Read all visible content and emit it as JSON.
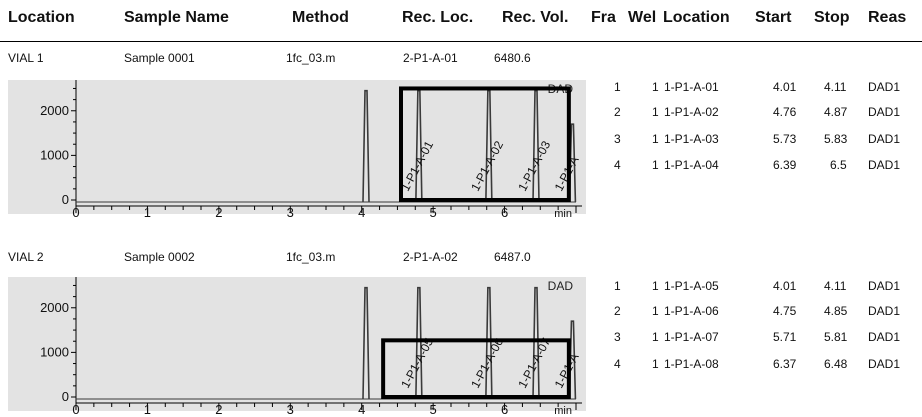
{
  "columns": [
    "Location",
    "Sample Name",
    "Method",
    "Rec. Loc.",
    "Rec. Vol.",
    "Fra",
    "Wel",
    "Location",
    "Start",
    "Stop",
    "Reas"
  ],
  "vials": [
    {
      "location": "VIAL 1",
      "sample": "Sample 0001",
      "method": "1fc_03.m",
      "rec_loc": "2-P1-A-01",
      "rec_vol": "6480.6",
      "fractions": [
        {
          "fra": "1",
          "wel": "1",
          "loc": "1-P1-A-01",
          "start": "4.01",
          "stop": "4.11",
          "reas": "DAD1"
        },
        {
          "fra": "2",
          "wel": "1",
          "loc": "1-P1-A-02",
          "start": "4.76",
          "stop": "4.87",
          "reas": "DAD1"
        },
        {
          "fra": "3",
          "wel": "1",
          "loc": "1-P1-A-03",
          "start": "5.73",
          "stop": "5.83",
          "reas": "DAD1"
        },
        {
          "fra": "4",
          "wel": "1",
          "loc": "1-P1-A-04",
          "start": "6.39",
          "stop": "6.5",
          "reas": "DAD1"
        }
      ]
    },
    {
      "location": "VIAL 2",
      "sample": "Sample 0002",
      "method": "1fc_03.m",
      "rec_loc": "2-P1-A-02",
      "rec_vol": "6487.0",
      "fractions": [
        {
          "fra": "1",
          "wel": "1",
          "loc": "1-P1-A-05",
          "start": "4.01",
          "stop": "4.11",
          "reas": "DAD1"
        },
        {
          "fra": "2",
          "wel": "1",
          "loc": "1-P1-A-06",
          "start": "4.75",
          "stop": "4.85",
          "reas": "DAD1"
        },
        {
          "fra": "3",
          "wel": "1",
          "loc": "1-P1-A-07",
          "start": "5.71",
          "stop": "5.81",
          "reas": "DAD1"
        },
        {
          "fra": "4",
          "wel": "1",
          "loc": "1-P1-A-08",
          "start": "6.37",
          "stop": "6.48",
          "reas": "DAD1"
        }
      ]
    }
  ],
  "colors": {
    "plot_bg": "#e3e3e3",
    "trace": "#3a3a3a",
    "box": "#000000"
  },
  "chart_data": [
    {
      "type": "line",
      "title": "",
      "detector_label": "DAD",
      "xlabel": "min",
      "ylabel": "",
      "xlim": [
        0,
        7
      ],
      "ylim": [
        0,
        2600
      ],
      "xticks": [
        0,
        1,
        2,
        3,
        4,
        5,
        6
      ],
      "yticks": [
        0,
        1000,
        2000
      ],
      "peaks": [
        {
          "x": 4.06,
          "height": 2450,
          "label": ""
        },
        {
          "x": 4.8,
          "height": 2450,
          "label": "1-P1-A-01"
        },
        {
          "x": 5.78,
          "height": 2450,
          "label": "1-P1-A-02"
        },
        {
          "x": 6.44,
          "height": 2450,
          "label": "1-P1-A-03"
        },
        {
          "x": 6.95,
          "height": 1700,
          "label": "1-P1-A"
        }
      ],
      "highlight_box": {
        "x_range": [
          4.55,
          6.9
        ],
        "y_range": [
          0,
          2500
        ]
      }
    },
    {
      "type": "line",
      "title": "",
      "detector_label": "DAD",
      "xlabel": "min",
      "ylabel": "",
      "xlim": [
        0,
        7
      ],
      "ylim": [
        0,
        2600
      ],
      "xticks": [
        0,
        1,
        2,
        3,
        4,
        5,
        6
      ],
      "yticks": [
        0,
        1000,
        2000
      ],
      "peaks": [
        {
          "x": 4.06,
          "height": 2450,
          "label": ""
        },
        {
          "x": 4.8,
          "height": 2450,
          "label": "1-P1-A-05"
        },
        {
          "x": 5.78,
          "height": 2450,
          "label": "1-P1-A-06"
        },
        {
          "x": 6.44,
          "height": 2450,
          "label": "1-P1-A-07"
        },
        {
          "x": 6.95,
          "height": 1700,
          "label": "1-P1-A"
        }
      ],
      "highlight_box": {
        "x_range": [
          4.3,
          6.9
        ],
        "y_range": [
          0,
          1270
        ]
      }
    }
  ]
}
